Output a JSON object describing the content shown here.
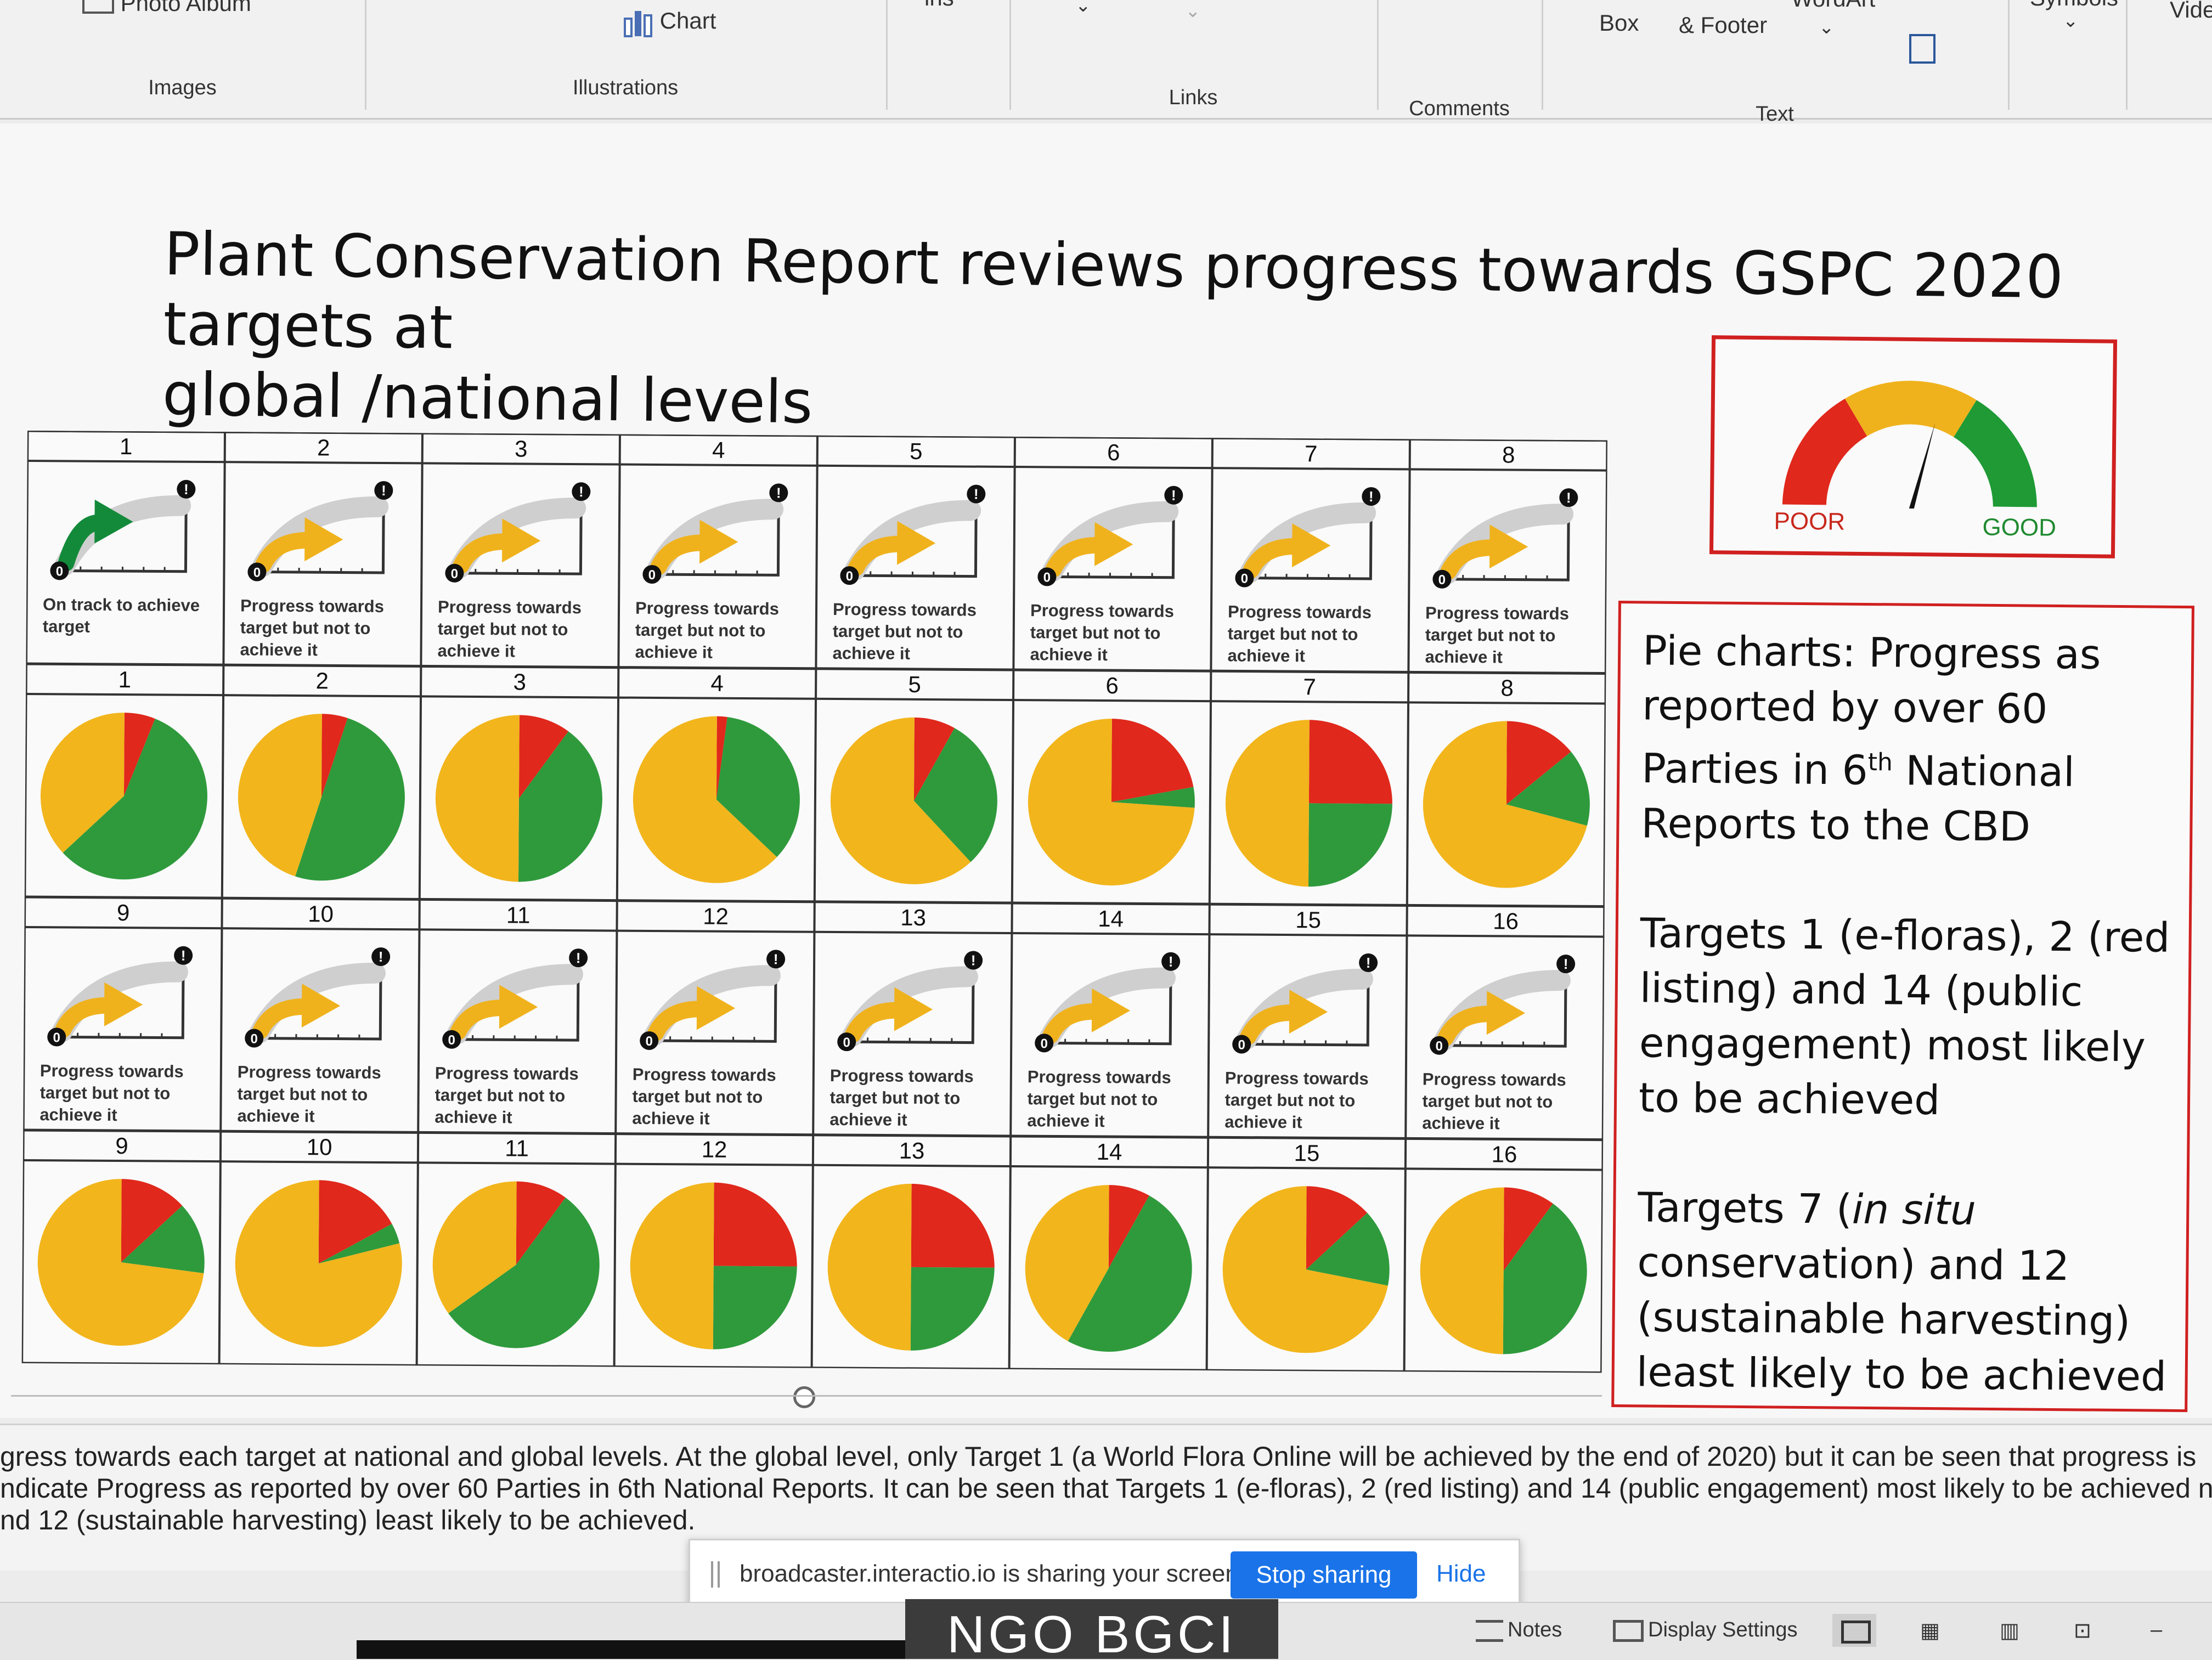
{
  "ribbon": {
    "photo_album": "Photo Album",
    "images_label": "Images",
    "chart_label": "Chart",
    "illustrations_label": "Illustrations",
    "ins_label": "ins",
    "links_label": "Links",
    "comments_label": "Comments",
    "box_label": "Box",
    "footer_label": "& Footer",
    "wordart_label": "WordArt",
    "text_label": "Text",
    "symbols_label": "Symbols",
    "video_label": "Vide"
  },
  "slide": {
    "title_line1": "Plant Conservation Report reviews progress towards GSPC 2020 targets at",
    "title_line2": "global /national levels",
    "gauge": {
      "poor": "POOR",
      "good": "GOOD",
      "colors": {
        "red": "#e0281c",
        "amber": "#f0b21c",
        "green": "#1f9a35"
      }
    },
    "text_paragraph1": "Pie charts: Progress as reported by over 60 Parties in 6",
    "text_paragraph1_sup": "th",
    "text_paragraph1_end": " National Reports to the CBD",
    "text_paragraph2": "Targets 1 (e-floras), 2 (red listing) and 14 (public engagement) most likely to be achieved",
    "text_p3_a": "Targets 7 (",
    "text_p3_em": "in situ",
    "text_p3_b": " conservation) and 12 (sustainable harvesting) least likely to be achieved"
  },
  "chart_data": {
    "type": "pie",
    "indicator_on_track": "On track to achieve target",
    "indicator_progress": "Progress towards target but not to achieve it",
    "indicator_axis_start": "0",
    "indicator_axis_end": "!",
    "colors": {
      "red": "#e0281c",
      "amber": "#f2b51c",
      "green": "#2f9a3c"
    },
    "targets": [
      {
        "target": 1,
        "status": "on_track",
        "red": 6,
        "amber": 37,
        "green": 57
      },
      {
        "target": 2,
        "status": "progress",
        "red": 5,
        "amber": 45,
        "green": 50
      },
      {
        "target": 3,
        "status": "progress",
        "red": 10,
        "amber": 50,
        "green": 40
      },
      {
        "target": 4,
        "status": "progress",
        "red": 2,
        "amber": 63,
        "green": 35
      },
      {
        "target": 5,
        "status": "progress",
        "red": 8,
        "amber": 62,
        "green": 30
      },
      {
        "target": 6,
        "status": "progress",
        "red": 22,
        "amber": 74,
        "green": 4
      },
      {
        "target": 7,
        "status": "progress",
        "red": 25,
        "amber": 50,
        "green": 25
      },
      {
        "target": 8,
        "status": "progress",
        "red": 14,
        "amber": 71,
        "green": 15
      },
      {
        "target": 9,
        "status": "progress",
        "red": 13,
        "amber": 73,
        "green": 14
      },
      {
        "target": 10,
        "status": "progress",
        "red": 17,
        "amber": 79,
        "green": 4
      },
      {
        "target": 11,
        "status": "progress",
        "red": 10,
        "amber": 35,
        "green": 55
      },
      {
        "target": 12,
        "status": "progress",
        "red": 25,
        "amber": 50,
        "green": 25
      },
      {
        "target": 13,
        "status": "progress",
        "red": 25,
        "amber": 50,
        "green": 25
      },
      {
        "target": 14,
        "status": "progress",
        "red": 8,
        "amber": 42,
        "green": 50
      },
      {
        "target": 15,
        "status": "progress",
        "red": 13,
        "amber": 72,
        "green": 15
      },
      {
        "target": 16,
        "status": "progress",
        "red": 10,
        "amber": 50,
        "green": 40
      }
    ]
  },
  "notes": {
    "line1": "gress towards each target at national and global levels.  At the global level, only Target 1 (a World Flora Online will be achieved by the end of 2020) but it can be seen that progress is",
    "line2": "ndicate Progress as reported by over 60 Parties in 6th National Reports. It can be seen that Targets 1 (e-floras), 2 (red listing) and 14 (public engagement) most likely to be achieved na",
    "line3": "nd 12 (sustainable harvesting) least likely to be achieved."
  },
  "share": {
    "message": "broadcaster.interactio.io is sharing your screen.",
    "stop": "Stop sharing",
    "hide": "Hide"
  },
  "status": {
    "notes": "Notes",
    "display_settings": "Display Settings"
  },
  "overlay": {
    "name": "NGO BGCI"
  }
}
